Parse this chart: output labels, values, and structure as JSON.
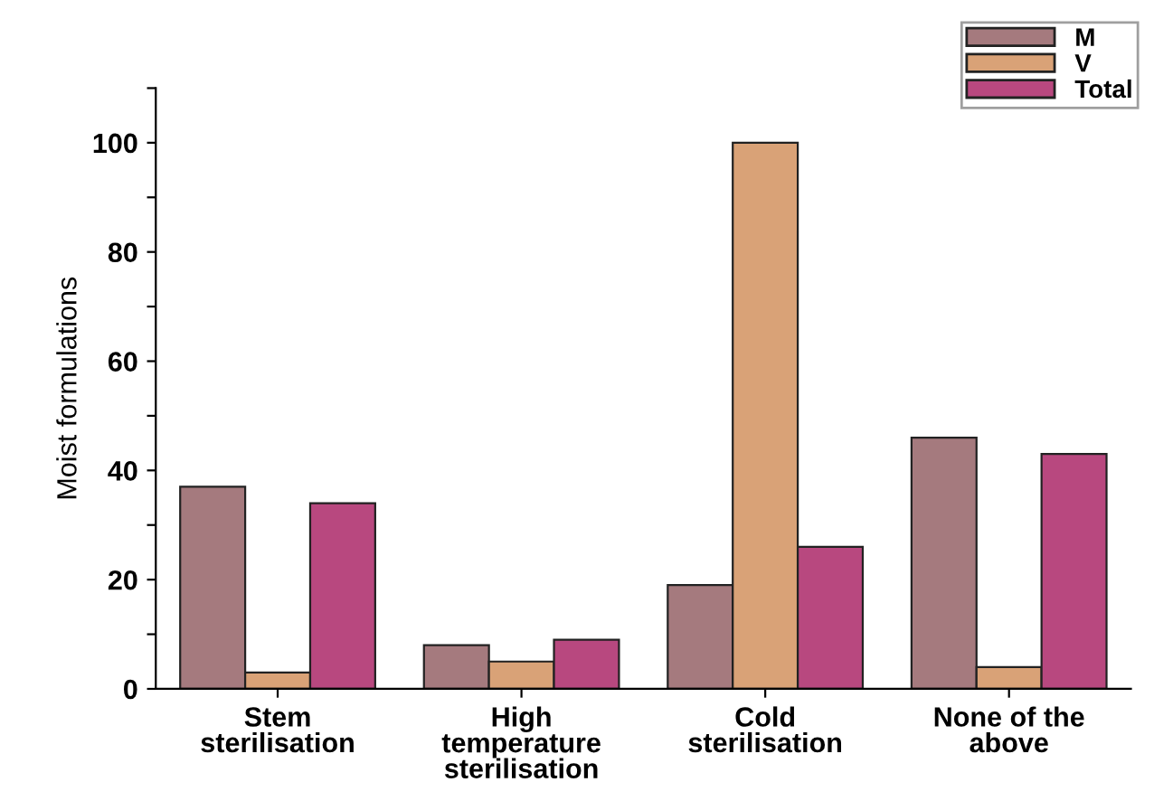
{
  "chart_data": {
    "type": "bar",
    "ylabel": "Moist formulations",
    "categories": [
      "Stem\nsterilisation",
      "High\ntemperature\nsterilisation",
      "Cold\nsterilisation",
      "None of the\nabove"
    ],
    "series": [
      {
        "name": "M",
        "color": "#a57a7e",
        "values": [
          37,
          8,
          19,
          46
        ]
      },
      {
        "name": "V",
        "color": "#d9a277",
        "values": [
          3,
          5,
          100,
          4
        ]
      },
      {
        "name": "Total",
        "color": "#b8487f",
        "values": [
          34,
          9,
          26,
          43
        ]
      }
    ],
    "ylim": [
      0,
      110
    ],
    "yticks": [
      0,
      {
        "value": 10,
        "label": null
      },
      20,
      {
        "value": 30,
        "label": null
      },
      40,
      {
        "value": 50,
        "label": null
      },
      60,
      {
        "value": 70,
        "label": null
      },
      80,
      {
        "value": 90,
        "label": null
      },
      100,
      {
        "value": 110,
        "label": null
      }
    ],
    "grid": false,
    "legend": "top right"
  }
}
